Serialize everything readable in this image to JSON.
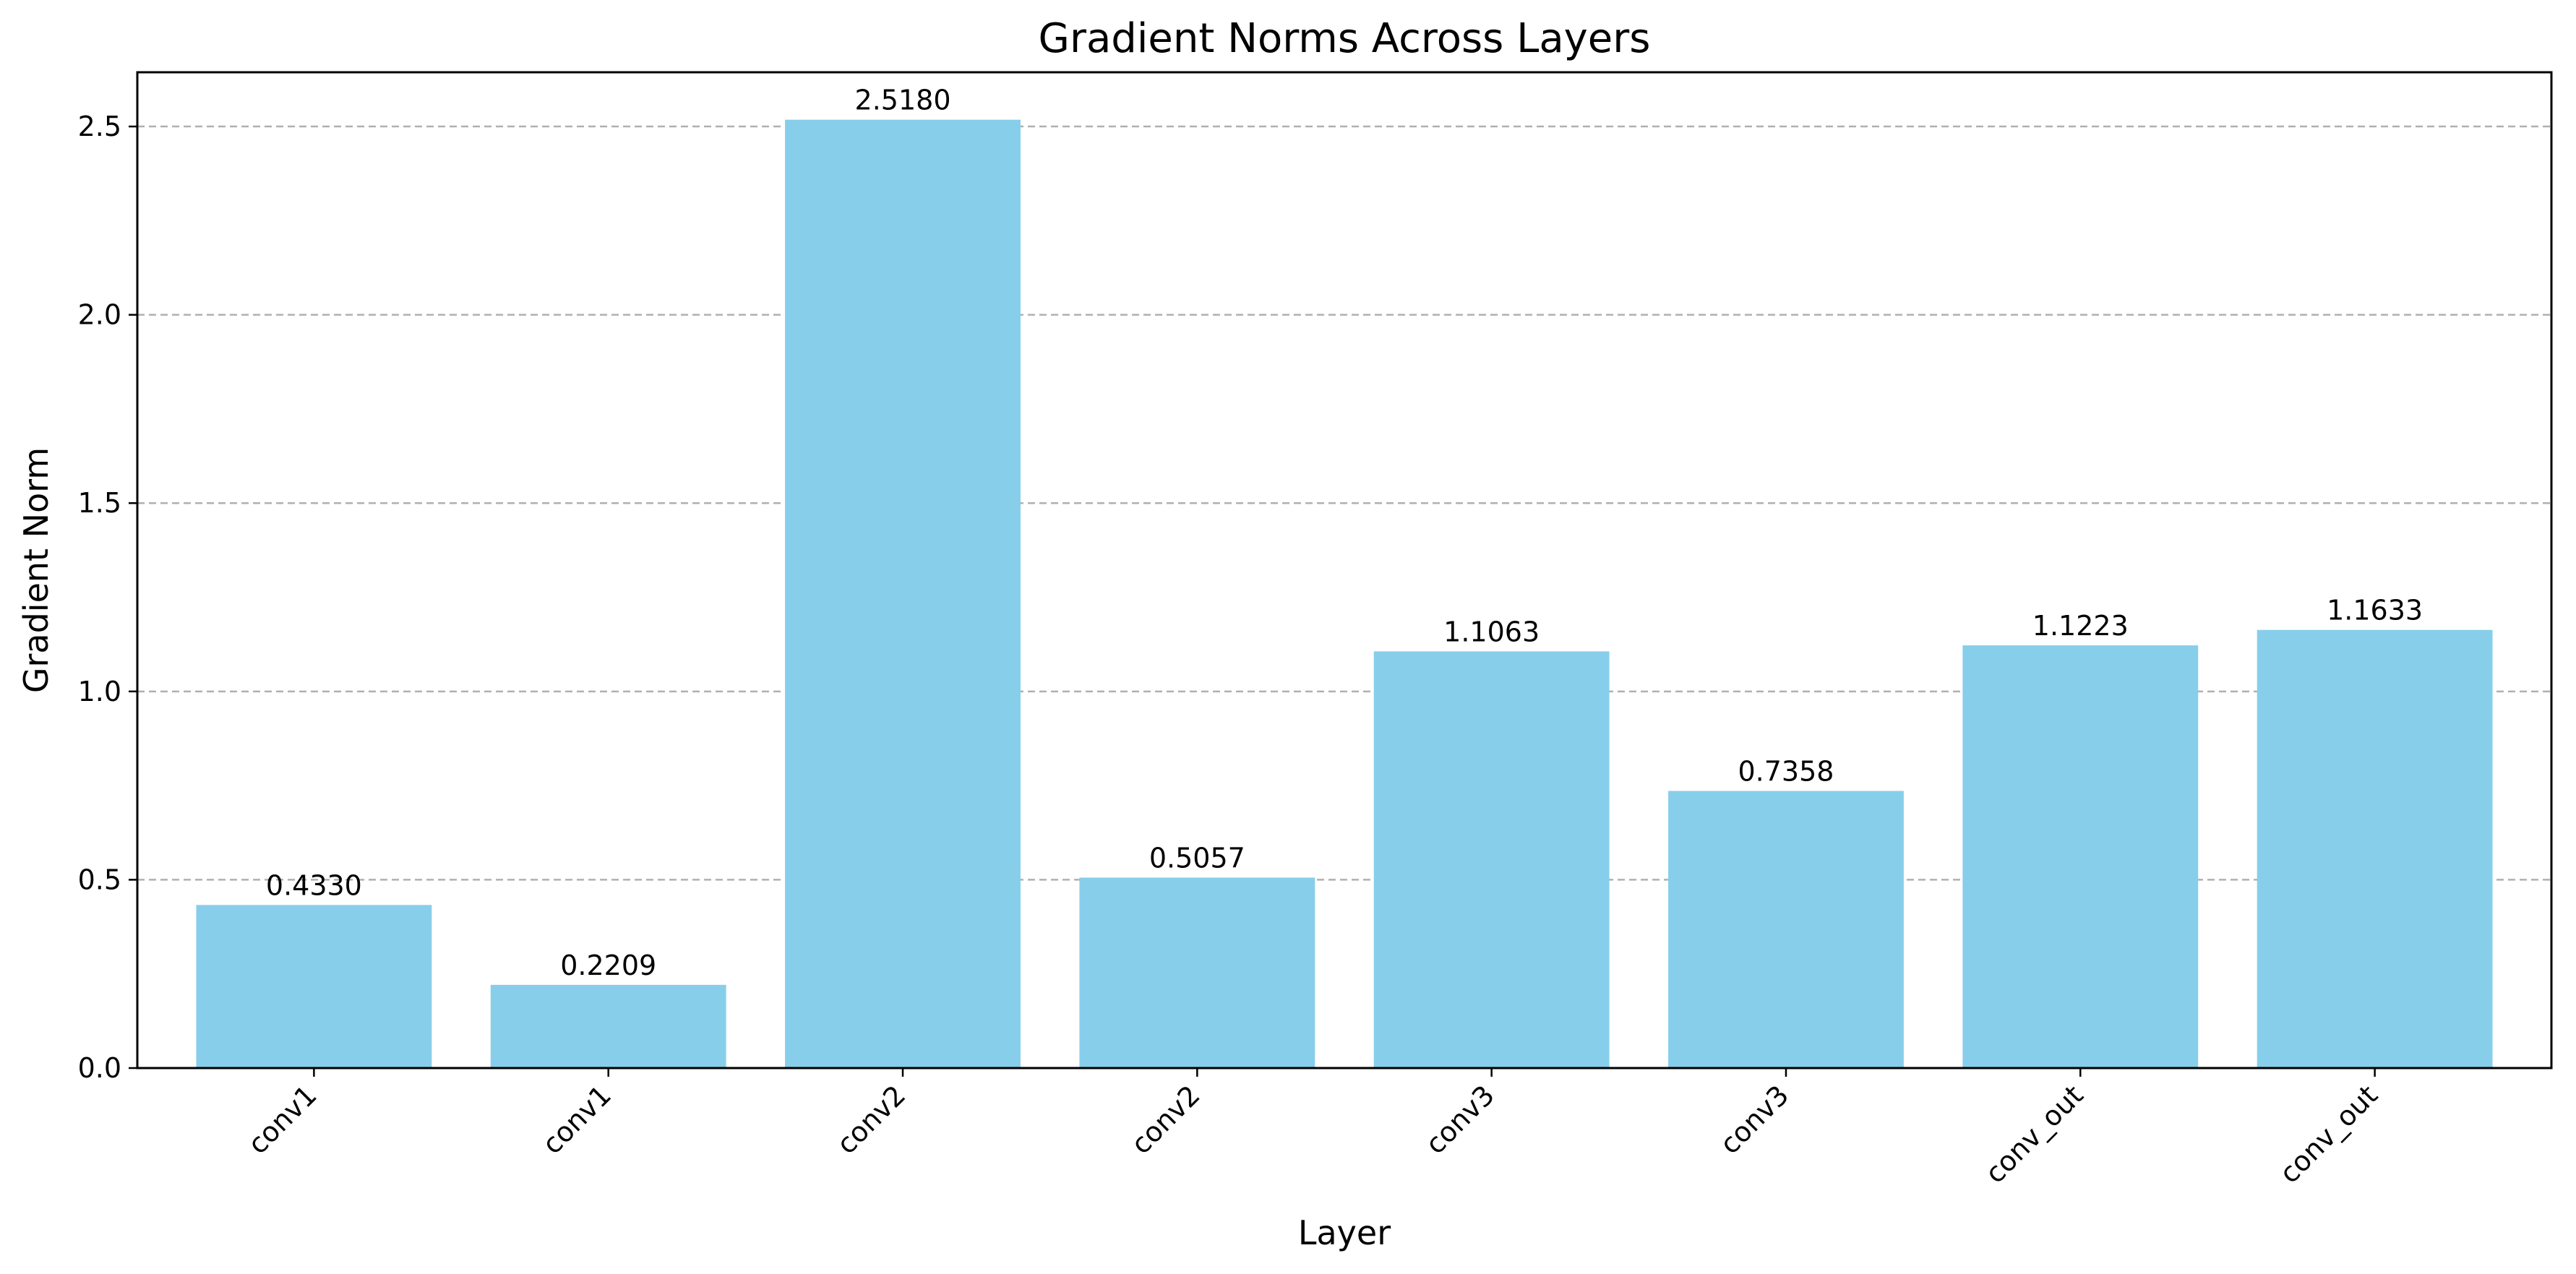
{
  "chart_data": {
    "type": "bar",
    "title": "Gradient Norms Across Layers",
    "xlabel": "Layer",
    "ylabel": "Gradient Norm",
    "categories": [
      "conv1",
      "conv1",
      "conv2",
      "conv2",
      "conv3",
      "conv3",
      "conv_out",
      "conv_out"
    ],
    "values": [
      0.433,
      0.2209,
      2.518,
      0.5057,
      1.1063,
      0.7358,
      1.1223,
      1.1633
    ],
    "value_labels": [
      "0.4330",
      "0.2209",
      "2.5180",
      "0.5057",
      "1.1063",
      "0.7358",
      "1.1223",
      "1.1633"
    ],
    "yticks": [
      0.0,
      0.5,
      1.0,
      1.5,
      2.0,
      2.5
    ],
    "ytick_labels": [
      "0.0",
      "0.5",
      "1.0",
      "1.5",
      "2.0",
      "2.5"
    ],
    "ylim": [
      0,
      2.644
    ],
    "grid": "y-axis, dashed",
    "legend": "none",
    "colors": {
      "bar": "#87ceeb",
      "grid": "#b0b0b0",
      "axis": "#000000"
    }
  }
}
